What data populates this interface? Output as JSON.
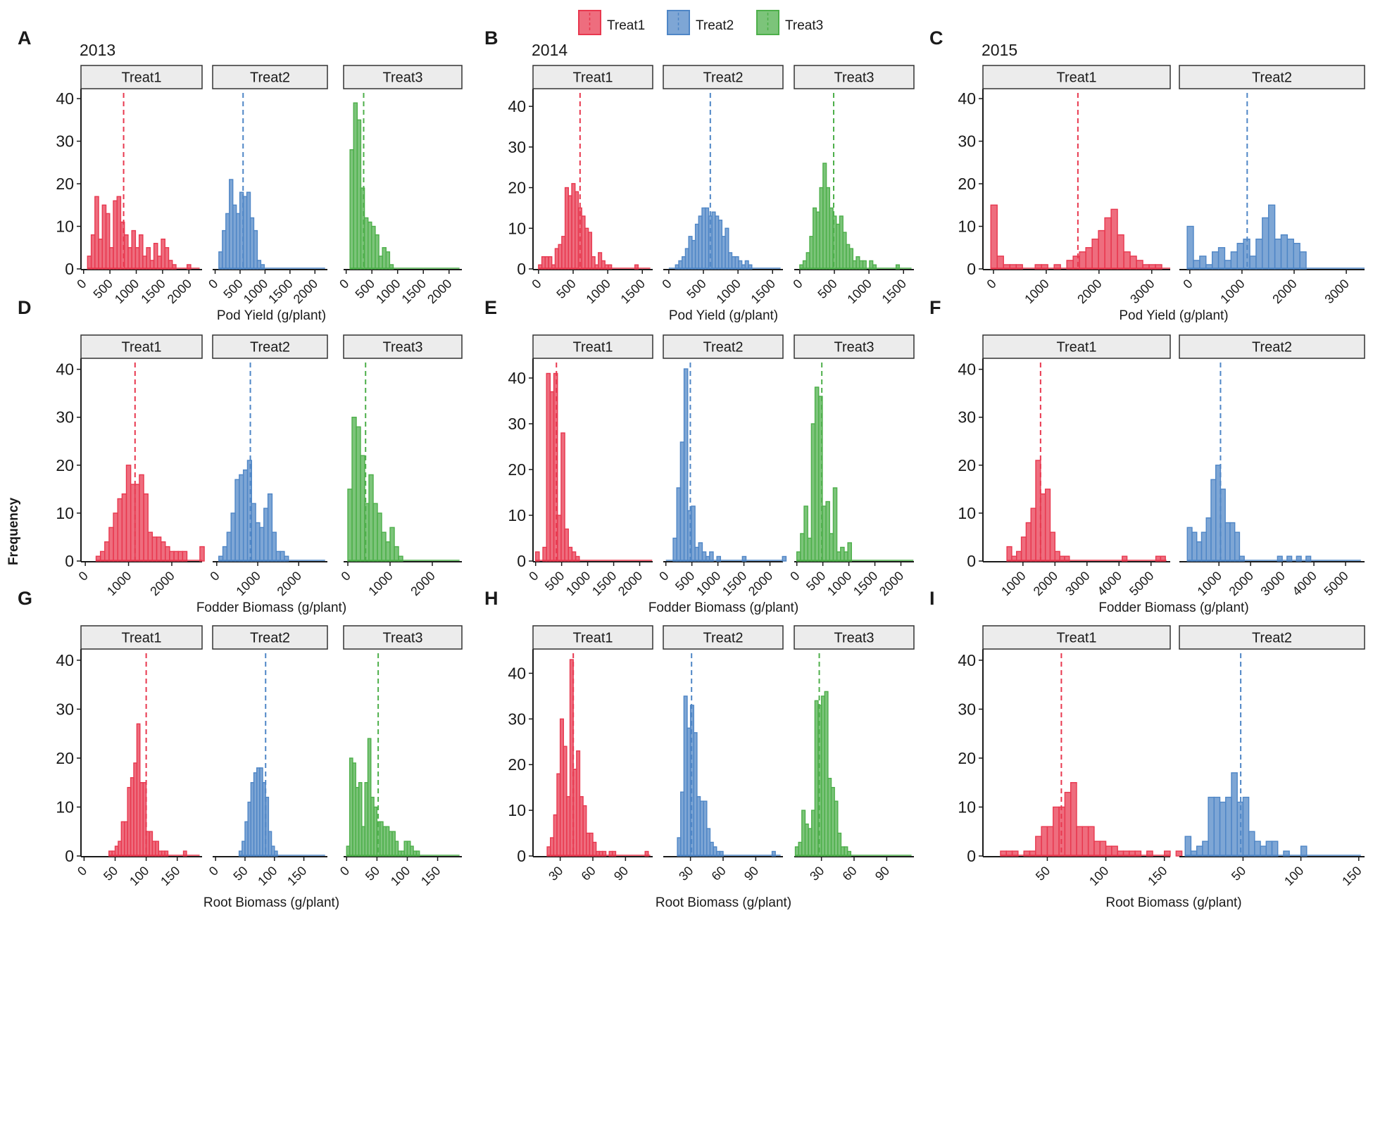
{
  "colors": {
    "Treat1": "#e8384f",
    "Treat2": "#4f86c6",
    "Treat3": "#4daf4a"
  },
  "legend": {
    "entries": [
      "Treat1",
      "Treat2",
      "Treat3"
    ]
  },
  "ylabel": "Frequency",
  "chart_data": [
    {
      "panel": "A",
      "year": "2013",
      "type": "histogram",
      "xlabel": "Pod Yield (g/plant)",
      "ylabel": "Frequency",
      "ylim": [
        0,
        42
      ],
      "yticks": [
        0,
        10,
        20,
        30,
        40
      ],
      "xlim": [
        -50,
        2250
      ],
      "xticks": [
        0,
        500,
        1000,
        1500,
        2000
      ],
      "facets": [
        {
          "treat": "Treat1",
          "mean": 760,
          "bin_start": 75,
          "bin_width": 70,
          "counts": [
            3,
            8,
            17,
            7,
            15,
            13,
            5,
            16,
            17,
            11,
            8,
            5,
            9,
            5,
            8,
            3,
            5,
            2,
            6,
            3,
            7,
            5,
            2,
            1,
            0,
            0,
            0,
            1
          ]
        },
        {
          "treat": "Treat2",
          "mean": 560,
          "bin_start": 75,
          "bin_width": 70,
          "counts": [
            4,
            9,
            13,
            21,
            15,
            13,
            18,
            17,
            18,
            12,
            9,
            2,
            1,
            0,
            0,
            0,
            0,
            0,
            0,
            0,
            0,
            0,
            0,
            0,
            0,
            0,
            0,
            0
          ]
        },
        {
          "treat": "Treat3",
          "mean": 340,
          "bin_start": 75,
          "bin_width": 70,
          "counts": [
            28,
            39,
            35,
            19,
            12,
            11,
            10,
            8,
            3,
            5,
            4,
            1,
            0,
            0,
            0,
            0,
            0,
            0,
            0,
            0,
            0,
            0,
            0,
            0,
            0,
            0,
            0,
            0
          ]
        }
      ]
    },
    {
      "panel": "B",
      "year": "2014",
      "type": "histogram",
      "xlabel": "Pod Yield (g/plant)",
      "ylabel": "Frequency",
      "ylim": [
        0,
        44
      ],
      "yticks": [
        0,
        10,
        20,
        30,
        40
      ],
      "xlim": [
        -80,
        1650
      ],
      "xticks": [
        0,
        500,
        1000,
        1500
      ],
      "facets": [
        {
          "treat": "Treat1",
          "mean": 600,
          "bin_start": 0,
          "bin_width": 48,
          "counts": [
            1,
            3,
            3,
            3,
            1,
            5,
            6,
            8,
            20,
            18,
            21,
            19,
            15,
            13,
            10,
            9,
            3,
            1,
            4,
            2,
            1,
            1,
            0,
            0,
            0,
            0,
            0,
            0,
            0,
            1
          ]
        },
        {
          "treat": "Treat2",
          "mean": 600,
          "bin_start": 0,
          "bin_width": 48,
          "counts": [
            0,
            0,
            1,
            2,
            3,
            5,
            8,
            7,
            11,
            13,
            15,
            15,
            13,
            14,
            13,
            12,
            8,
            10,
            4,
            3,
            3,
            2,
            1,
            2,
            1,
            0,
            0,
            0,
            0,
            0
          ]
        },
        {
          "treat": "Treat3",
          "mean": 490,
          "bin_start": 0,
          "bin_width": 48,
          "counts": [
            1,
            2,
            4,
            8,
            15,
            14,
            20,
            26,
            20,
            15,
            13,
            11,
            13,
            9,
            6,
            5,
            2,
            3,
            2,
            2,
            0,
            2,
            1,
            0,
            0,
            0,
            0,
            0,
            0,
            1
          ]
        }
      ]
    },
    {
      "panel": "C",
      "year": "2015",
      "type": "histogram",
      "xlabel": "Pod Yield (g/plant)",
      "ylabel": "Frequency",
      "ylim": [
        0,
        42
      ],
      "yticks": [
        0,
        10,
        20,
        30,
        40
      ],
      "xlim": [
        -200,
        3350
      ],
      "xticks": [
        0,
        1000,
        2000,
        3000
      ],
      "facets": [
        {
          "treat": "Treat1",
          "mean": 1600,
          "bin_start": -50,
          "bin_width": 120,
          "counts": [
            15,
            3,
            1,
            1,
            1,
            0,
            0,
            1,
            1,
            0,
            1,
            0,
            2,
            3,
            4,
            5,
            7,
            9,
            12,
            14,
            8,
            4,
            3,
            2,
            1,
            1,
            1,
            0,
            0,
            0,
            0
          ]
        },
        {
          "treat": "Treat2",
          "mean": 1100,
          "bin_start": -50,
          "bin_width": 120,
          "counts": [
            10,
            2,
            3,
            1,
            4,
            5,
            2,
            4,
            6,
            7,
            3,
            7,
            12,
            15,
            7,
            8,
            7,
            6,
            4,
            0,
            0,
            0,
            0,
            0,
            0,
            0,
            0,
            0,
            0,
            0
          ]
        }
      ]
    },
    {
      "panel": "D",
      "type": "histogram",
      "xlabel": "Fodder Biomass (g/plant)",
      "ylabel": "Frequency",
      "ylim": [
        0,
        42
      ],
      "yticks": [
        0,
        10,
        20,
        30,
        40
      ],
      "xlim": [
        -100,
        2700
      ],
      "xticks": [
        0,
        1000,
        2000
      ],
      "facets": [
        {
          "treat": "Treat1",
          "mean": 1150,
          "bin_start": 250,
          "bin_width": 100,
          "counts": [
            1,
            2,
            4,
            7,
            10,
            13,
            14,
            20,
            16,
            16,
            18,
            14,
            6,
            5,
            5,
            4,
            3,
            2,
            2,
            2,
            2,
            0,
            0,
            0,
            3
          ]
        },
        {
          "treat": "Treat2",
          "mean": 820,
          "bin_start": 50,
          "bin_width": 100,
          "counts": [
            1,
            3,
            6,
            10,
            17,
            18,
            19,
            21,
            12,
            8,
            7,
            11,
            14,
            6,
            2,
            2,
            1
          ]
        },
        {
          "treat": "Treat3",
          "mean": 420,
          "bin_start": 0,
          "bin_width": 100,
          "counts": [
            15,
            30,
            28,
            22,
            12,
            18,
            12,
            10,
            6,
            4,
            7,
            3,
            1
          ]
        }
      ]
    },
    {
      "panel": "E",
      "type": "histogram",
      "xlabel": "Fodder Biomass (g/plant)",
      "ylabel": "Frequency",
      "ylim": [
        0,
        44
      ],
      "yticks": [
        0,
        10,
        20,
        30,
        40
      ],
      "xlim": [
        -50,
        2250
      ],
      "xticks": [
        0,
        500,
        1000,
        1500,
        2000
      ],
      "facets": [
        {
          "treat": "Treat1",
          "mean": 400,
          "bin_start": 0,
          "bin_width": 70,
          "counts": [
            2,
            0,
            3,
            41,
            37,
            41,
            10,
            28,
            7,
            3,
            2,
            1,
            0,
            0,
            0,
            0,
            0,
            0,
            0,
            0,
            0,
            0,
            0,
            0,
            0,
            0,
            0,
            0,
            0,
            0,
            0,
            0
          ]
        },
        {
          "treat": "Treat2",
          "mean": 470,
          "bin_start": 0,
          "bin_width": 70,
          "counts": [
            0,
            0,
            5,
            16,
            26,
            42,
            11,
            12,
            3,
            4,
            2,
            1,
            2,
            0,
            1,
            0,
            0,
            0,
            0,
            0,
            0,
            1,
            0,
            0,
            0,
            0,
            0,
            0,
            0,
            0,
            0,
            0,
            1
          ]
        },
        {
          "treat": "Treat3",
          "mean": 480,
          "bin_start": 0,
          "bin_width": 70,
          "counts": [
            2,
            6,
            12,
            5,
            30,
            38,
            36,
            12,
            13,
            6,
            16,
            2,
            3,
            2,
            4,
            0,
            0,
            0,
            0,
            0,
            0,
            0,
            0,
            0,
            0,
            0,
            0,
            0,
            0,
            0,
            0,
            0
          ]
        }
      ]
    },
    {
      "panel": "F",
      "type": "histogram",
      "xlabel": "Fodder Biomass (g/plant)",
      "ylabel": "Frequency",
      "ylim": [
        0,
        42
      ],
      "yticks": [
        0,
        10,
        20,
        30,
        40
      ],
      "xlim": [
        -250,
        5600
      ],
      "xticks": [
        1000,
        2000,
        3000,
        4000,
        5000
      ],
      "facets": [
        {
          "treat": "Treat1",
          "mean": 1550,
          "bin_start": 500,
          "bin_width": 150,
          "counts": [
            3,
            1,
            2,
            5,
            8,
            11,
            21,
            14,
            15,
            6,
            2,
            1,
            1,
            0,
            0,
            0,
            0,
            0,
            0,
            0,
            0,
            0,
            0,
            0,
            1,
            0,
            0,
            0,
            0,
            0,
            0,
            1,
            1
          ]
        },
        {
          "treat": "Treat2",
          "mean": 1050,
          "bin_start": 0,
          "bin_width": 150,
          "counts": [
            7,
            6,
            4,
            6,
            9,
            17,
            20,
            15,
            8,
            8,
            6,
            1,
            0,
            0,
            0,
            0,
            0,
            0,
            0,
            1,
            0,
            1,
            0,
            1,
            0,
            1
          ]
        }
      ]
    },
    {
      "panel": "G",
      "type": "histogram",
      "xlabel": "Root Biomass (g/plant)",
      "ylabel": "Frequency",
      "ylim": [
        0,
        42
      ],
      "yticks": [
        0,
        10,
        20,
        30,
        40
      ],
      "xlim": [
        -5,
        190
      ],
      "xticks": [
        0,
        50,
        100,
        150
      ],
      "facets": [
        {
          "treat": "Treat1",
          "mean": 100,
          "bin_start": 40,
          "bin_width": 5,
          "counts": [
            1,
            1,
            2,
            3,
            7,
            7,
            14,
            16,
            19,
            27,
            15,
            15,
            5,
            5,
            3,
            3,
            1,
            1,
            1,
            0,
            0,
            0,
            0,
            0,
            1
          ]
        },
        {
          "treat": "Treat2",
          "mean": 85,
          "bin_start": 40,
          "bin_width": 5,
          "counts": [
            1,
            3,
            7,
            11,
            15,
            17,
            18,
            18,
            15,
            12,
            5,
            2,
            1
          ]
        },
        {
          "treat": "Treat3",
          "mean": 52,
          "bin_start": 0,
          "bin_width": 5,
          "counts": [
            2,
            20,
            19,
            14,
            15,
            6,
            15,
            24,
            12,
            10,
            7,
            7,
            6,
            6,
            5,
            5,
            3,
            1,
            1,
            3,
            3,
            2,
            1,
            1
          ]
        }
      ]
    },
    {
      "panel": "H",
      "type": "histogram",
      "xlabel": "Root Biomass (g/plant)",
      "ylabel": "Frequency",
      "ylim": [
        0,
        45
      ],
      "yticks": [
        0,
        10,
        20,
        30,
        40
      ],
      "xlim": [
        5,
        115
      ],
      "xticks": [
        30,
        60,
        90
      ],
      "facets": [
        {
          "treat": "Treat1",
          "mean": 42,
          "bin_start": 18,
          "bin_width": 3,
          "counts": [
            2,
            4,
            9,
            18,
            30,
            24,
            13,
            43,
            19,
            23,
            13,
            11,
            5,
            5,
            3,
            1,
            1,
            1,
            0,
            1,
            1,
            0,
            0,
            0,
            0,
            0,
            0,
            0,
            0,
            0,
            1
          ]
        },
        {
          "treat": "Treat2",
          "mean": 31,
          "bin_start": 18,
          "bin_width": 3,
          "counts": [
            4,
            14,
            35,
            28,
            33,
            27,
            13,
            12,
            12,
            6,
            3,
            2,
            1,
            1,
            0,
            0,
            0,
            0,
            0,
            0,
            0,
            0,
            0,
            0,
            0,
            0,
            0,
            0,
            0,
            1
          ]
        },
        {
          "treat": "Treat3",
          "mean": 28,
          "bin_start": 6,
          "bin_width": 3,
          "counts": [
            2,
            3,
            10,
            7,
            6,
            10,
            34,
            33,
            35,
            36,
            17,
            15,
            12,
            5,
            2,
            2,
            1
          ]
        }
      ]
    },
    {
      "panel": "I",
      "type": "histogram",
      "xlabel": "Root Biomass (g/plant)",
      "ylabel": "Frequency",
      "ylim": [
        0,
        42
      ],
      "yticks": [
        0,
        10,
        20,
        30,
        40
      ],
      "xlim": [
        -5,
        155
      ],
      "xticks": [
        50,
        100,
        150
      ],
      "facets": [
        {
          "treat": "Treat1",
          "mean": 62,
          "bin_start": 10,
          "bin_width": 5,
          "counts": [
            1,
            1,
            1,
            0,
            1,
            1,
            4,
            6,
            6,
            10,
            10,
            13,
            15,
            6,
            6,
            6,
            3,
            3,
            2,
            2,
            1,
            1,
            1,
            1,
            0,
            1,
            0,
            0,
            1,
            0,
            1
          ]
        },
        {
          "treat": "Treat2",
          "mean": 48,
          "bin_start": 0,
          "bin_width": 5,
          "counts": [
            4,
            1,
            2,
            3,
            12,
            12,
            11,
            12,
            17,
            11,
            12,
            5,
            3,
            2,
            3,
            3,
            0,
            1,
            0,
            0,
            2
          ]
        }
      ]
    }
  ]
}
